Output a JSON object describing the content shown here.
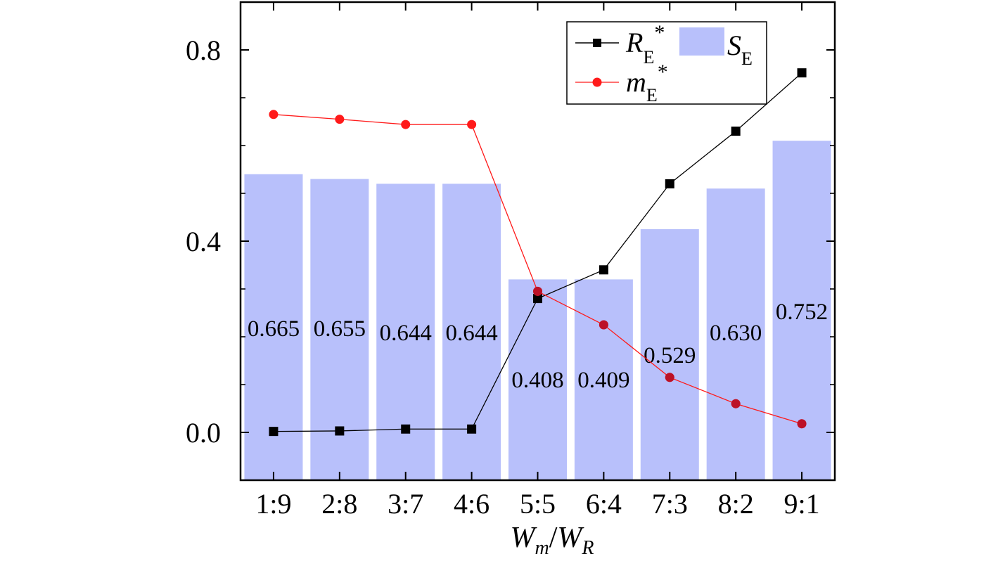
{
  "chart_data": {
    "type": "bar+line",
    "categories": [
      "1:9",
      "2:8",
      "3:7",
      "4:6",
      "5:5",
      "6:4",
      "7:3",
      "8:2",
      "9:1"
    ],
    "xlabel": {
      "main": "W",
      "sub1": "m",
      "sep": "/",
      "main2": "W",
      "sub2": "R"
    },
    "ylim": [
      -0.1,
      0.88
    ],
    "yticks": [
      0.0,
      0.4,
      0.8
    ],
    "ytick_labels": [
      "0.0",
      "0.4",
      "0.8"
    ],
    "grid": false,
    "legend_position": "top-right",
    "bars": {
      "legend": {
        "main": "S",
        "sub": "E"
      },
      "color": "#b8c0fb",
      "values": [
        0.54,
        0.53,
        0.52,
        0.52,
        0.32,
        0.32,
        0.425,
        0.51,
        0.61
      ],
      "labels": [
        "0.665",
        "0.655",
        "0.644",
        "0.644",
        "0.408",
        "0.409",
        "0.529",
        "0.630",
        "0.752"
      ]
    },
    "series": [
      {
        "legend": {
          "main": "R",
          "sub": "E",
          "sup": "*"
        },
        "color": "#000000",
        "marker": "square",
        "values": [
          0.002,
          0.003,
          0.007,
          0.007,
          0.28,
          0.34,
          0.52,
          0.63,
          0.752
        ]
      },
      {
        "legend": {
          "main": "m",
          "sub": "E",
          "sup": "*"
        },
        "color": "#ff1a1a",
        "marker": "circle",
        "values": [
          0.665,
          0.655,
          0.644,
          0.644,
          0.295,
          0.225,
          0.115,
          0.06,
          0.018
        ]
      }
    ]
  }
}
